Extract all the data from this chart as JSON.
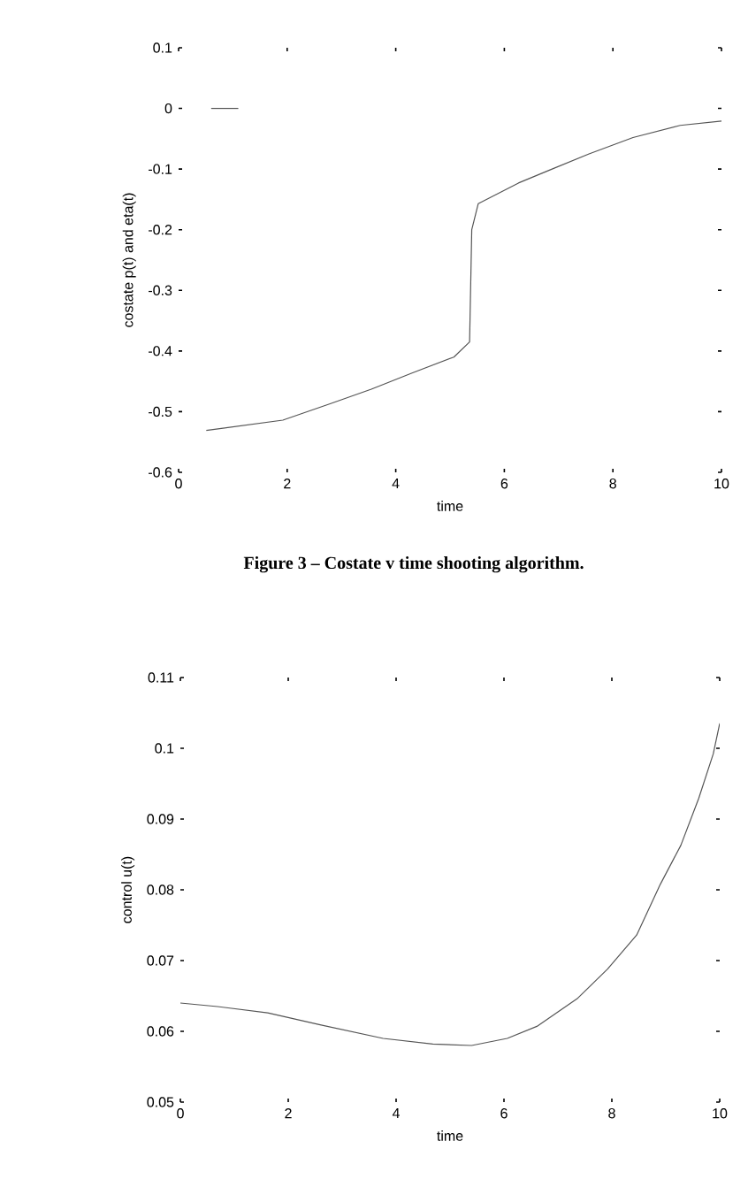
{
  "chart_data": [
    {
      "type": "line",
      "xlabel": "time",
      "ylabel": "costate p(t) and eta(t)",
      "annotations": [
        "Figure 3 – Costate v time  shooting algorithm."
      ],
      "xlim": [
        0,
        10
      ],
      "ylim": [
        -0.6,
        0.1
      ],
      "xticks": [
        0,
        2,
        4,
        6,
        8,
        10
      ],
      "yticks": [
        -0.6,
        -0.5,
        -0.4,
        -0.3,
        -0.2,
        -0.1,
        0,
        0.1
      ],
      "marker": "none",
      "line_style": "solid",
      "series": [
        {
          "color": "#555555",
          "x": [
            0.6,
            1.1
          ],
          "values": [
            0,
            0
          ]
        },
        {
          "color": "#555555",
          "x": [
            0.51,
            1.92,
            2.79,
            3.55,
            4.31,
            5.07,
            5.36,
            5.4,
            5.52,
            6.26,
            6.85,
            7.56,
            8.37,
            9.24,
            10
          ],
          "values": [
            -0.531,
            -0.514,
            -0.487,
            -0.463,
            -0.436,
            -0.41,
            -0.385,
            -0.2,
            -0.157,
            -0.123,
            -0.101,
            -0.075,
            -0.048,
            -0.028,
            -0.021
          ]
        }
      ]
    },
    {
      "type": "line",
      "xlabel": "time",
      "ylabel": "control u(t)",
      "xlim": [
        0,
        10
      ],
      "ylim": [
        0.05,
        0.11
      ],
      "xticks": [
        0,
        2,
        4,
        6,
        8,
        10
      ],
      "yticks": [
        0.05,
        0.06,
        0.07,
        0.08,
        0.09,
        0.1,
        0.11
      ],
      "marker": "none",
      "line_style": "solid",
      "series": [
        {
          "color": "#555555",
          "x": [
            0,
            0.69,
            1.62,
            2.61,
            3.76,
            4.68,
            5.4,
            6.06,
            6.61,
            7.37,
            7.92,
            8.46,
            8.9,
            9.28,
            9.61,
            9.88,
            10
          ],
          "values": [
            0.064,
            0.0635,
            0.0626,
            0.0609,
            0.059,
            0.0582,
            0.058,
            0.059,
            0.0607,
            0.0647,
            0.0688,
            0.0736,
            0.0808,
            0.0863,
            0.0929,
            0.0992,
            0.1035
          ]
        }
      ]
    }
  ]
}
